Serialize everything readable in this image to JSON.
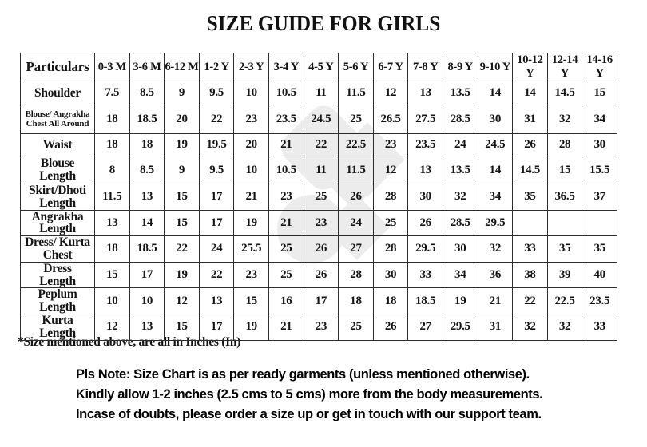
{
  "title": "SIZE GUIDE FOR GIRLS",
  "table": {
    "header": [
      "Particulars",
      "0-3 M",
      "3-6 M",
      "6-12 M",
      "1-2 Y",
      "2-3 Y",
      "3-4 Y",
      "4-5 Y",
      "5-6 Y",
      "6-7 Y",
      "7-8 Y",
      "8-9 Y",
      "9-10 Y",
      "10-12 Y",
      "12-14 Y",
      "14-16 Y"
    ],
    "rows": [
      {
        "label": "Shoulder",
        "small": false,
        "values": [
          "7.5",
          "8.5",
          "9",
          "9.5",
          "10",
          "10.5",
          "11",
          "11.5",
          "12",
          "13",
          "13.5",
          "14",
          "14",
          "14.5",
          "15"
        ]
      },
      {
        "label": "Blouse/ Angrakha\nChest All Around",
        "small": true,
        "values": [
          "18",
          "18.5",
          "20",
          "22",
          "23",
          "23.5",
          "24.5",
          "25",
          "26.5",
          "27.5",
          "28.5",
          "30",
          "31",
          "32",
          "34"
        ]
      },
      {
        "label": "Waist",
        "small": false,
        "values": [
          "18",
          "18",
          "19",
          "19.5",
          "20",
          "21",
          "22",
          "22.5",
          "23",
          "23.5",
          "24",
          "24.5",
          "26",
          "28",
          "30"
        ]
      },
      {
        "label": "Blouse\nLength",
        "small": false,
        "values": [
          "8",
          "8.5",
          "9",
          "9.5",
          "10",
          "10.5",
          "11",
          "11.5",
          "12",
          "13",
          "13.5",
          "14",
          "14.5",
          "15",
          "15.5"
        ]
      },
      {
        "label": "Skirt/Dhoti\nLength",
        "small": false,
        "values": [
          "11.5",
          "13",
          "15",
          "17",
          "21",
          "23",
          "25",
          "26",
          "28",
          "30",
          "32",
          "34",
          "35",
          "36.5",
          "37"
        ]
      },
      {
        "label": "Angrakha\nLength",
        "small": false,
        "values": [
          "13",
          "14",
          "15",
          "17",
          "19",
          "21",
          "23",
          "24",
          "25",
          "26",
          "28.5",
          "29.5",
          "",
          "",
          ""
        ]
      },
      {
        "label": "Dress/ Kurta\nChest",
        "small": false,
        "values": [
          "18",
          "18.5",
          "22",
          "24",
          "25.5",
          "25",
          "26",
          "27",
          "28",
          "29.5",
          "30",
          "32",
          "33",
          "35",
          "35"
        ]
      },
      {
        "label": "Dress\nLength",
        "small": false,
        "values": [
          "15",
          "17",
          "19",
          "22",
          "23",
          "25",
          "26",
          "28",
          "30",
          "33",
          "34",
          "36",
          "38",
          "39",
          "40"
        ]
      },
      {
        "label": "Peplum\nLength",
        "small": false,
        "values": [
          "10",
          "10",
          "12",
          "13",
          "15",
          "16",
          "17",
          "18",
          "18",
          "18.5",
          "19",
          "21",
          "22",
          "22.5",
          "23.5"
        ]
      },
      {
        "label": "Kurta\nLength",
        "small": false,
        "values": [
          "12",
          "13",
          "15",
          "17",
          "19",
          "21",
          "23",
          "25",
          "26",
          "27",
          "29.5",
          "31",
          "32",
          "32",
          "33"
        ]
      }
    ]
  },
  "footnote": "*Size mentioned above, are all in Inches (In)",
  "note": {
    "lines": [
      "Pls Note: Size Chart is as per ready garments (unless mentioned otherwise).",
      "Kindly allow 1-2 inches (2.5 cms to 5 cms) more from the body measurements.",
      "Incase of doubts, please order a size up or get in touch with our support team."
    ]
  },
  "units": "Inches (In)",
  "colors": {
    "background": "#ffffff",
    "text": "#141414",
    "table_border": "#2d2d2d",
    "watermark": "#ececec"
  }
}
